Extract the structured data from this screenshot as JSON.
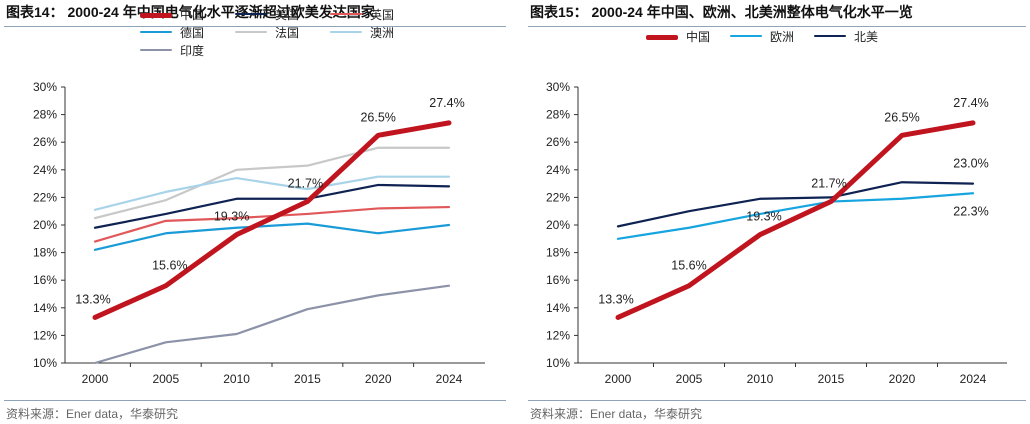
{
  "chart_data": [
    {
      "type": "line",
      "title": "图表14：  2000-24 年中国电气化水平逐渐超过欧美发达国家",
      "source": "资料来源：Ener data，华泰研究",
      "categories": [
        "2000",
        "2005",
        "2010",
        "2015",
        "2020",
        "2024"
      ],
      "ylim": [
        10,
        30
      ],
      "yticks": [
        "10%",
        "12%",
        "14%",
        "16%",
        "18%",
        "20%",
        "22%",
        "24%",
        "26%",
        "28%",
        "30%"
      ],
      "grid": false,
      "legend": "top",
      "series": [
        {
          "name": "中国",
          "color": "#c0141e",
          "width": 5,
          "values": [
            13.3,
            15.6,
            19.3,
            21.7,
            26.5,
            27.4
          ],
          "labels": [
            "13.3%",
            "15.6%",
            "19.3%",
            "21.7%",
            "26.5%",
            "27.4%"
          ]
        },
        {
          "name": "美国",
          "color": "#0f2352",
          "width": 2.2,
          "values": [
            19.8,
            20.8,
            21.9,
            21.9,
            22.9,
            22.8
          ]
        },
        {
          "name": "英国",
          "color": "#e0585a",
          "width": 2.2,
          "values": [
            18.8,
            20.3,
            20.5,
            20.8,
            21.2,
            21.3
          ]
        },
        {
          "name": "德国",
          "color": "#1a9bd7",
          "width": 2.2,
          "values": [
            18.2,
            19.4,
            19.8,
            20.1,
            19.4,
            20.0
          ]
        },
        {
          "name": "法国",
          "color": "#c8c8c8",
          "width": 2.2,
          "values": [
            20.5,
            21.8,
            24.0,
            24.3,
            25.6,
            25.6
          ]
        },
        {
          "name": "澳洲",
          "color": "#a9d3e8",
          "width": 2.2,
          "values": [
            21.1,
            22.4,
            23.4,
            22.6,
            23.5,
            23.5
          ]
        },
        {
          "name": "印度",
          "color": "#8c93a8",
          "width": 2.2,
          "values": [
            10.0,
            11.5,
            12.1,
            13.9,
            14.9,
            15.6
          ]
        }
      ]
    },
    {
      "type": "line",
      "title": "图表15：  2000-24 年中国、欧洲、北美洲整体电气化水平一览",
      "source": "资料来源：Ener data，华泰研究",
      "categories": [
        "2000",
        "2005",
        "2010",
        "2015",
        "2020",
        "2024"
      ],
      "ylim": [
        10,
        30
      ],
      "yticks": [
        "10%",
        "12%",
        "14%",
        "16%",
        "18%",
        "20%",
        "22%",
        "24%",
        "26%",
        "28%",
        "30%"
      ],
      "grid": false,
      "legend": "top",
      "series": [
        {
          "name": "中国",
          "color": "#c0141e",
          "width": 5,
          "values": [
            13.3,
            15.6,
            19.3,
            21.7,
            26.5,
            27.4
          ],
          "labels": [
            "13.3%",
            "15.6%",
            "19.3%",
            "21.7%",
            "26.5%",
            "27.4%"
          ]
        },
        {
          "name": "欧洲",
          "color": "#17a5e0",
          "width": 2.2,
          "values": [
            19.0,
            19.8,
            20.8,
            21.7,
            21.9,
            22.3
          ],
          "labels": [
            "",
            "",
            "",
            "",
            "",
            "22.3%"
          ]
        },
        {
          "name": "北美",
          "color": "#0f2352",
          "width": 2.2,
          "values": [
            19.9,
            21.0,
            21.9,
            22.0,
            23.1,
            23.0
          ],
          "labels": [
            "",
            "",
            "",
            "",
            "",
            "23.0%"
          ]
        }
      ]
    }
  ]
}
